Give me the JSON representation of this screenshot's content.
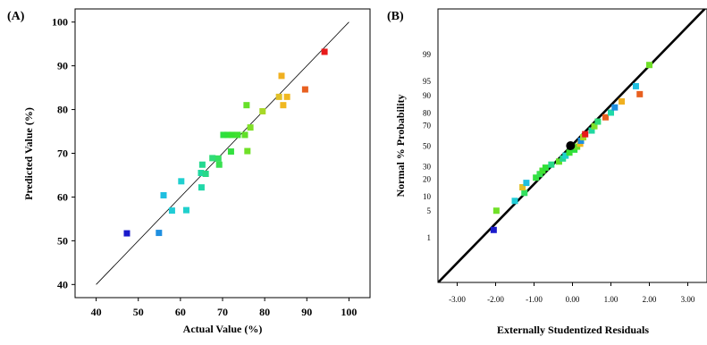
{
  "chart_data": [
    {
      "type": "scatter",
      "panel_label": "(A)",
      "xlabel": "Actual Value (%)",
      "ylabel": "Predicted Value (%)",
      "xlim": [
        35,
        105
      ],
      "ylim": [
        37,
        103
      ],
      "xticks": [
        40,
        50,
        60,
        70,
        80,
        90,
        100
      ],
      "yticks": [
        40,
        50,
        60,
        70,
        80,
        90,
        100
      ],
      "reference_line": [
        [
          40,
          40
        ],
        [
          100,
          100
        ]
      ],
      "grid": false,
      "points": [
        {
          "x": 47.3,
          "y": 51.7,
          "color": "#1a1acc"
        },
        {
          "x": 54.9,
          "y": 51.8,
          "color": "#1f8fe0"
        },
        {
          "x": 56.0,
          "y": 60.4,
          "color": "#1fbfe0"
        },
        {
          "x": 58.0,
          "y": 56.9,
          "color": "#20ccd6"
        },
        {
          "x": 60.2,
          "y": 63.6,
          "color": "#20d0d0"
        },
        {
          "x": 61.4,
          "y": 57.0,
          "color": "#20d0cc"
        },
        {
          "x": 65.0,
          "y": 62.2,
          "color": "#20d8a8"
        },
        {
          "x": 64.9,
          "y": 65.5,
          "color": "#20d8a0"
        },
        {
          "x": 65.2,
          "y": 67.4,
          "color": "#24d890"
        },
        {
          "x": 66.0,
          "y": 65.3,
          "color": "#28d888"
        },
        {
          "x": 67.6,
          "y": 68.9,
          "color": "#30dc78"
        },
        {
          "x": 69.0,
          "y": 68.8,
          "color": "#34e060"
        },
        {
          "x": 69.2,
          "y": 67.4,
          "color": "#38e050"
        },
        {
          "x": 70.2,
          "y": 74.2,
          "color": "#2ee040"
        },
        {
          "x": 71.2,
          "y": 74.2,
          "color": "#30e038"
        },
        {
          "x": 72.0,
          "y": 70.4,
          "color": "#34e040"
        },
        {
          "x": 72.3,
          "y": 74.2,
          "color": "#38e030"
        },
        {
          "x": 73.6,
          "y": 74.2,
          "color": "#40e030"
        },
        {
          "x": 75.3,
          "y": 74.2,
          "color": "#60e028"
        },
        {
          "x": 75.7,
          "y": 81.0,
          "color": "#66e028"
        },
        {
          "x": 75.9,
          "y": 70.5,
          "color": "#70e028"
        },
        {
          "x": 76.6,
          "y": 75.9,
          "color": "#80e028"
        },
        {
          "x": 79.5,
          "y": 79.6,
          "color": "#a8d828"
        },
        {
          "x": 83.4,
          "y": 82.9,
          "color": "#e0c028"
        },
        {
          "x": 84.0,
          "y": 87.7,
          "color": "#f0b020"
        },
        {
          "x": 84.4,
          "y": 81.0,
          "color": "#f0b820"
        },
        {
          "x": 85.3,
          "y": 82.9,
          "color": "#f0b820"
        },
        {
          "x": 89.6,
          "y": 84.6,
          "color": "#e86020"
        },
        {
          "x": 94.2,
          "y": 93.2,
          "color": "#e81a1a"
        }
      ]
    },
    {
      "type": "scatter",
      "panel_label": "(B)",
      "xlabel": "Externally Studentized Residuals",
      "ylabel": "Normal % Probability",
      "xlim": [
        -3.5,
        3.5
      ],
      "xticks": [
        "-3.00",
        "-2.00",
        "-1.00",
        "0.00",
        "1.00",
        "2.00",
        "3.00"
      ],
      "y_scale": "normal-probability",
      "yticks": [
        1,
        5,
        10,
        20,
        30,
        50,
        70,
        80,
        90,
        95,
        99
      ],
      "reference_line": [
        [
          -3.5,
          0.0245
        ],
        [
          3.5,
          99.98
        ]
      ],
      "grid": false,
      "points": [
        {
          "x": -2.05,
          "y": 1.6,
          "color": "#1a1acc"
        },
        {
          "x": -1.98,
          "y": 4.9,
          "color": "#70e028"
        },
        {
          "x": -1.5,
          "y": 8.0,
          "color": "#20ccd6"
        },
        {
          "x": -1.25,
          "y": 11.5,
          "color": "#34e060"
        },
        {
          "x": -1.3,
          "y": 14.5,
          "color": "#e0c028"
        },
        {
          "x": -1.2,
          "y": 17.2,
          "color": "#1fbfe0"
        },
        {
          "x": -0.95,
          "y": 20.8,
          "color": "#34e040"
        },
        {
          "x": -0.85,
          "y": 23.5,
          "color": "#38e050"
        },
        {
          "x": -0.78,
          "y": 26.2,
          "color": "#40e030"
        },
        {
          "x": -0.7,
          "y": 28.8,
          "color": "#30e038"
        },
        {
          "x": -0.55,
          "y": 31.5,
          "color": "#28d888"
        },
        {
          "x": -0.35,
          "y": 34.3,
          "color": "#60e028"
        },
        {
          "x": -0.25,
          "y": 37.2,
          "color": "#24d890"
        },
        {
          "x": -0.18,
          "y": 40.0,
          "color": "#20d0d0"
        },
        {
          "x": -0.08,
          "y": 43.0,
          "color": "#38e030"
        },
        {
          "x": 0.05,
          "y": 46.0,
          "color": "#2ee040"
        },
        {
          "x": 0.12,
          "y": 49.0,
          "color": "#66e028"
        },
        {
          "x": 0.2,
          "y": 52.0,
          "color": "#f0b820"
        },
        {
          "x": 0.22,
          "y": 55.0,
          "color": "#1f8fe0"
        },
        {
          "x": 0.28,
          "y": 58.5,
          "color": "#a8d828"
        },
        {
          "x": 0.33,
          "y": 61.5,
          "color": "#e81a1a"
        },
        {
          "x": 0.5,
          "y": 65.0,
          "color": "#20d8a0"
        },
        {
          "x": 0.57,
          "y": 69.0,
          "color": "#80e028"
        },
        {
          "x": 0.66,
          "y": 73.0,
          "color": "#30dc78"
        },
        {
          "x": 0.86,
          "y": 76.5,
          "color": "#e86020"
        },
        {
          "x": 1.0,
          "y": 80.0,
          "color": "#20d8a8"
        },
        {
          "x": 1.1,
          "y": 83.5,
          "color": "#1f8fe0"
        },
        {
          "x": 1.28,
          "y": 87.0,
          "color": "#f0b020"
        },
        {
          "x": 1.75,
          "y": 90.5,
          "color": "#e86020"
        },
        {
          "x": 1.65,
          "y": 93.5,
          "color": "#1fbfe0"
        },
        {
          "x": 2.0,
          "y": 98.0,
          "color": "#70e028"
        }
      ],
      "highlight_point": {
        "x": -0.05,
        "y": 50.0,
        "color": "#000000"
      }
    }
  ]
}
